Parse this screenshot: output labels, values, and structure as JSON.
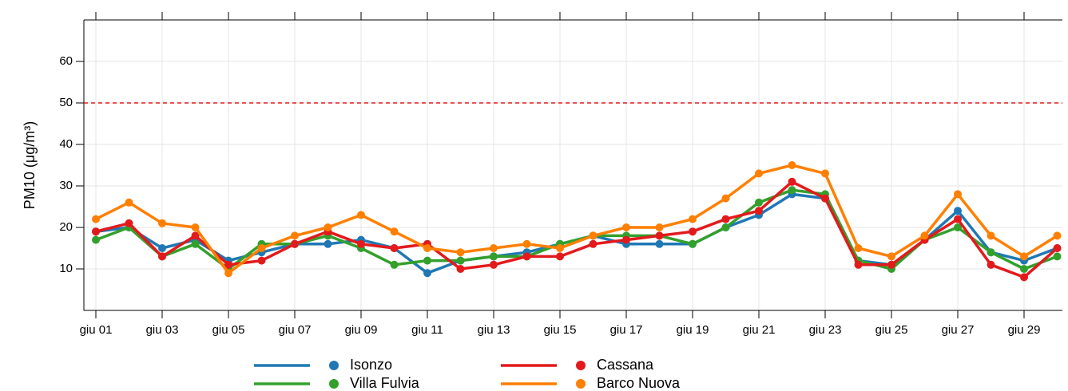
{
  "chart_data": {
    "type": "line",
    "ylabel": "PM10 (μg/m³)",
    "categories": [
      "giu 01",
      null,
      "giu 03",
      null,
      "giu 05",
      null,
      "giu 07",
      null,
      "giu 09",
      null,
      "giu 11",
      null,
      "giu 13",
      null,
      "giu 15",
      null,
      "giu 17",
      null,
      "giu 19",
      null,
      "giu 21",
      null,
      "giu 23",
      null,
      "giu 25",
      null,
      "giu 27",
      null,
      "giu 29",
      null
    ],
    "series": [
      {
        "name": "Isonzo",
        "color": "#1f78b4",
        "values": [
          19,
          20,
          15,
          17,
          12,
          14,
          16,
          16,
          17,
          15,
          9,
          12,
          13,
          14,
          16,
          18,
          16,
          16,
          16,
          20,
          23,
          28,
          27,
          12,
          11,
          17,
          24,
          14,
          12,
          15
        ]
      },
      {
        "name": "Villa Fulvia",
        "color": "#33a02c",
        "values": [
          17,
          20,
          13,
          16,
          10,
          16,
          16,
          18,
          15,
          11,
          12,
          12,
          13,
          13,
          16,
          18,
          18,
          18,
          16,
          20,
          26,
          29,
          28,
          12,
          10,
          17,
          20,
          14,
          10,
          13
        ]
      },
      {
        "name": "Cassana",
        "color": "#e31a1c",
        "values": [
          19,
          21,
          13,
          18,
          11,
          12,
          16,
          19,
          16,
          15,
          16,
          10,
          11,
          13,
          13,
          16,
          17,
          18,
          19,
          22,
          24,
          31,
          27,
          11,
          11,
          17,
          22,
          11,
          8,
          15
        ]
      },
      {
        "name": "Barco Nuova",
        "color": "#ff7f00",
        "values": [
          22,
          26,
          21,
          20,
          9,
          15,
          18,
          20,
          23,
          19,
          15,
          14,
          15,
          16,
          15,
          18,
          20,
          20,
          22,
          27,
          33,
          35,
          33,
          15,
          13,
          18,
          28,
          18,
          13,
          18
        ]
      }
    ],
    "threshold": {
      "value": 50,
      "color": "#e31a1c"
    },
    "ylim": [
      0,
      70
    ],
    "yticks": [
      10,
      20,
      30,
      40,
      50,
      60
    ],
    "grid": true
  }
}
